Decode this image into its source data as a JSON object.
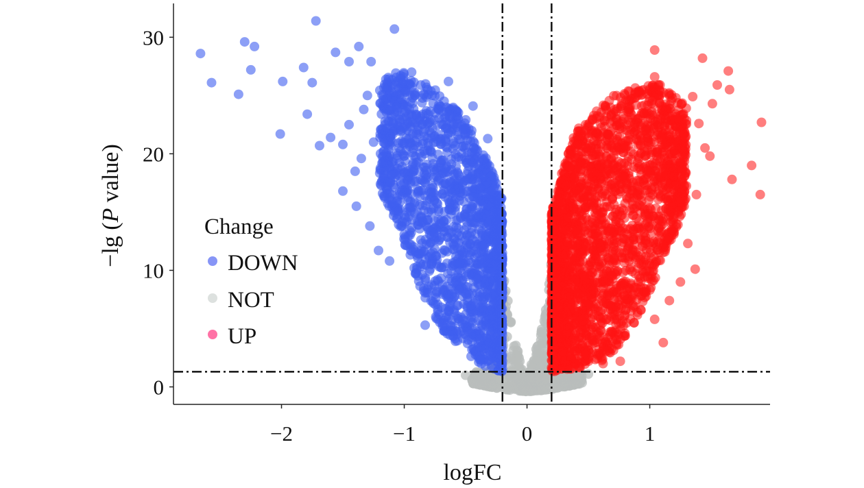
{
  "chart_data": {
    "type": "scatter",
    "subtype": "volcano",
    "xlabel": "logFC",
    "ylabel": {
      "prefix": "−lg (",
      "italic": "P",
      "suffix": " value)"
    },
    "xlim": [
      -2.88,
      1.98
    ],
    "ylim": [
      -1.5,
      32.9
    ],
    "xticks": [
      -2,
      -1,
      0,
      1
    ],
    "xtick_labels": [
      "−2",
      "−1",
      "0",
      "1"
    ],
    "yticks": [
      0,
      10,
      20,
      30
    ],
    "ytick_labels": [
      "0",
      "10",
      "20",
      "30"
    ],
    "grid": false,
    "thresholds": {
      "logFC": [
        -0.2,
        0.2
      ],
      "neg_log_p": 1.3
    },
    "legend": {
      "title": "Change",
      "placement": "left-middle",
      "entries": [
        {
          "label": "DOWN",
          "color": "#8795f6"
        },
        {
          "label": "NOT",
          "color": "#dde1df"
        },
        {
          "label": "UP",
          "color": "#ff72a6"
        }
      ]
    },
    "series": [
      {
        "name": "NOT",
        "color": "#b9bdbc",
        "opacity": 0.75,
        "count": 700,
        "cloud": [
          [
            -0.45,
            0.3,
            1.3
          ],
          [
            -0.3,
            0,
            1.3
          ],
          [
            -0.2,
            -0.2,
            11
          ],
          [
            -0.12,
            -0.3,
            5
          ],
          [
            0,
            -0.4,
            0.8
          ],
          [
            0.12,
            -0.3,
            5
          ],
          [
            0.2,
            -0.2,
            11
          ],
          [
            0.3,
            0,
            1.3
          ],
          [
            0.45,
            0.3,
            1.3
          ]
        ],
        "points": [
          [
            -0.42,
            0.5
          ],
          [
            0.5,
            1.1
          ],
          [
            -0.5,
            1.0
          ]
        ]
      },
      {
        "name": "DOWN",
        "color": "#3f5ff0",
        "opacity": 0.6,
        "count": 1800,
        "cloud": [
          [
            -0.2,
            1.3,
            16
          ],
          [
            -0.3,
            1.5,
            19
          ],
          [
            -0.4,
            2,
            21
          ],
          [
            -0.5,
            3,
            23
          ],
          [
            -0.6,
            4,
            24
          ],
          [
            -0.7,
            5,
            25
          ],
          [
            -0.8,
            7,
            26
          ],
          [
            -0.9,
            9,
            26
          ],
          [
            -1.0,
            12,
            27
          ],
          [
            -1.1,
            15,
            27
          ],
          [
            -1.2,
            17,
            26
          ]
        ],
        "points": [
          [
            -2.66,
            28.6
          ],
          [
            -2.57,
            26.1
          ],
          [
            -2.3,
            29.6
          ],
          [
            -2.22,
            29.2
          ],
          [
            -2.25,
            27.2
          ],
          [
            -2.35,
            25.1
          ],
          [
            -2.01,
            21.7
          ],
          [
            -1.99,
            26.2
          ],
          [
            -1.72,
            31.4
          ],
          [
            -1.08,
            30.7
          ],
          [
            -1.82,
            27.4
          ],
          [
            -1.75,
            26.1
          ],
          [
            -1.69,
            20.7
          ],
          [
            -1.79,
            23.4
          ],
          [
            -1.56,
            28.7
          ],
          [
            -1.45,
            27.9
          ],
          [
            -1.37,
            29.2
          ],
          [
            -1.27,
            27.9
          ],
          [
            -1.21,
            11.7
          ],
          [
            -1.12,
            10.8
          ],
          [
            -1.39,
            15.5
          ],
          [
            -1.28,
            13.8
          ],
          [
            -1.4,
            18.5
          ],
          [
            -0.83,
            5.3
          ],
          [
            -1.6,
            21.4
          ],
          [
            -1.5,
            20.8
          ],
          [
            -1.03,
            26.7
          ],
          [
            -0.94,
            27.0
          ],
          [
            -0.64,
            26.2
          ],
          [
            -0.44,
            24.1
          ],
          [
            -0.32,
            21.3
          ],
          [
            -0.27,
            17.0
          ],
          [
            -1.17,
            20.2
          ],
          [
            -1.0,
            24.0
          ],
          [
            -1.33,
            23.8
          ],
          [
            -1.17,
            17.9
          ],
          [
            -1.45,
            22.5
          ],
          [
            -1.3,
            25.0
          ],
          [
            -1.25,
            21.0
          ],
          [
            -1.1,
            22.8
          ],
          [
            -1.5,
            16.8
          ],
          [
            -1.35,
            19.6
          ]
        ]
      },
      {
        "name": "UP",
        "color": "#ff1414",
        "opacity": 0.55,
        "count": 2600,
        "cloud": [
          [
            0.2,
            1.3,
            15
          ],
          [
            0.3,
            1.4,
            19
          ],
          [
            0.4,
            1.5,
            22
          ],
          [
            0.5,
            2,
            23
          ],
          [
            0.6,
            2,
            24
          ],
          [
            0.7,
            3,
            25
          ],
          [
            0.8,
            4,
            25.5
          ],
          [
            0.9,
            6,
            26
          ],
          [
            1.0,
            8,
            26
          ],
          [
            1.1,
            11,
            26
          ],
          [
            1.2,
            13,
            25
          ],
          [
            1.3,
            16,
            24
          ]
        ],
        "points": [
          [
            1.04,
            28.9
          ],
          [
            1.43,
            28.2
          ],
          [
            1.64,
            27.1
          ],
          [
            1.65,
            25.5
          ],
          [
            1.91,
            22.7
          ],
          [
            1.83,
            19.0
          ],
          [
            1.9,
            16.5
          ],
          [
            1.67,
            17.8
          ],
          [
            1.49,
            19.8
          ],
          [
            1.37,
            10.1
          ],
          [
            1.16,
            7.4
          ],
          [
            1.11,
            3.8
          ],
          [
            0.76,
            2.2
          ],
          [
            1.04,
            5.8
          ],
          [
            1.28,
            15.5
          ],
          [
            1.31,
            12.3
          ],
          [
            1.51,
            24.3
          ],
          [
            1.55,
            25.9
          ],
          [
            1.35,
            24.9
          ],
          [
            1.21,
            17.3
          ],
          [
            0.9,
            6.4
          ],
          [
            0.62,
            2.0
          ],
          [
            1.04,
            26.6
          ],
          [
            1.29,
            21.4
          ],
          [
            1.4,
            22.6
          ],
          [
            1.45,
            20.5
          ],
          [
            1.38,
            16.5
          ],
          [
            1.25,
            9.0
          ]
        ]
      }
    ]
  }
}
